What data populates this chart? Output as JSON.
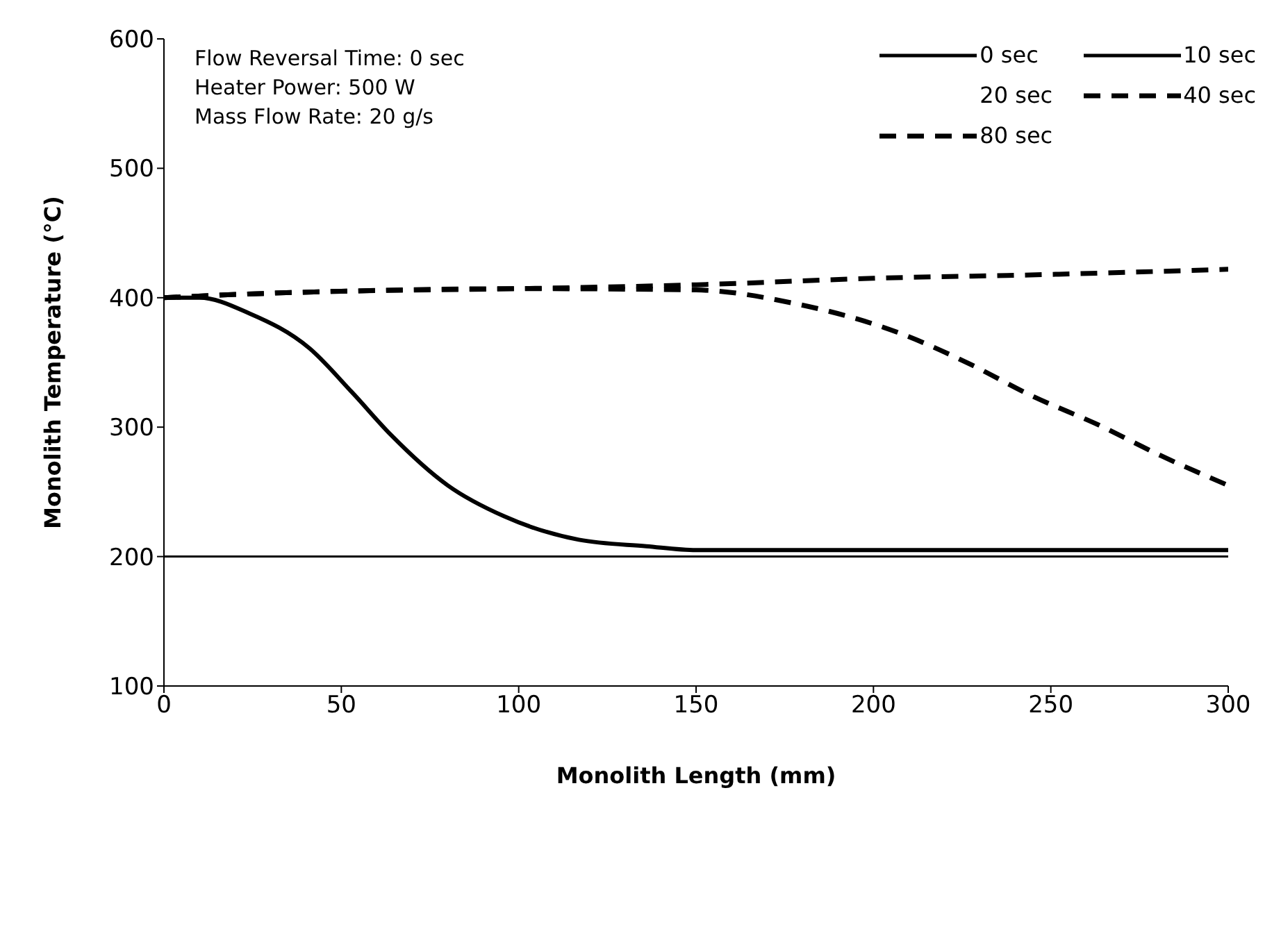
{
  "chart_data": {
    "type": "line",
    "xlabel": "Monolith Length (mm)",
    "ylabel": "Monolith Temperature (°C)",
    "xlim": [
      0,
      300
    ],
    "xticks": [
      0,
      50,
      100,
      150,
      200,
      250,
      300
    ],
    "ylim": [
      100,
      600
    ],
    "yticks": [
      100,
      200,
      300,
      400,
      500,
      600
    ],
    "legend": "top right",
    "annotations": [
      "Flow Reversal Time: 0 sec",
      "Heater Power: 500 W",
      "Mass Flow Rate: 20 g/s"
    ],
    "series": [
      {
        "name": "0 sec",
        "color": "#000000",
        "line_style": "solid",
        "x": [
          0,
          300
        ],
        "values": [
          200,
          200
        ]
      },
      {
        "name": "10 sec",
        "color": "#000000",
        "line_style": "solid",
        "x": [
          0,
          10,
          24,
          41,
          53,
          64,
          80,
          96,
          117,
          136,
          150,
          200,
          250,
          300
        ],
        "values": [
          400,
          400,
          388,
          361,
          327,
          294,
          255,
          231,
          213,
          208,
          205,
          205,
          205,
          205
        ]
      },
      {
        "name": "20 sec"
      },
      {
        "name": "40 sec",
        "color": "#000000",
        "line_style": "dashed",
        "x": [
          0,
          25,
          50,
          100,
          150,
          177,
          208,
          227,
          244,
          264,
          281,
          300
        ],
        "values": [
          400,
          403,
          405,
          407,
          406,
          396,
          372,
          349,
          325,
          301,
          278,
          255
        ]
      },
      {
        "name": "80 sec",
        "color": "#000000",
        "line_style": "dashed",
        "x": [
          0,
          25,
          50,
          100,
          150,
          200,
          250,
          300
        ],
        "values": [
          400,
          403,
          405,
          407,
          410,
          415,
          418,
          422
        ]
      }
    ]
  }
}
